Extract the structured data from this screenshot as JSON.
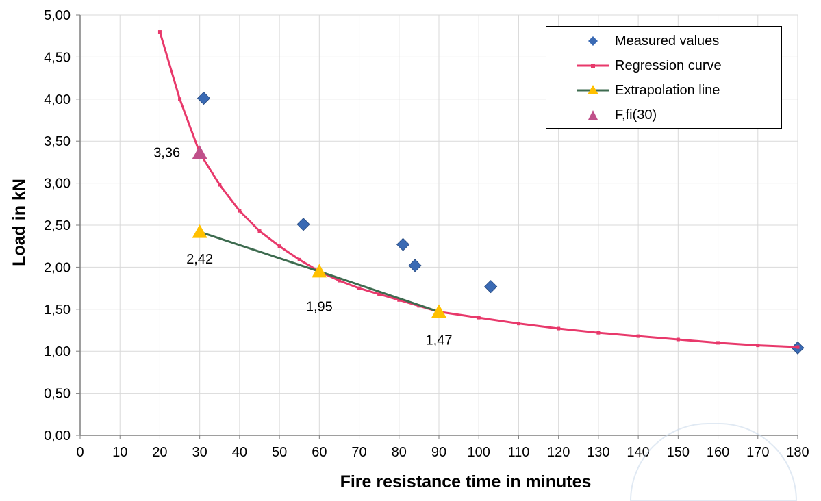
{
  "chart_data": {
    "type": "scatter",
    "xlabel": "Fire resistance time in minutes",
    "ylabel": "Load in kN",
    "xlim": [
      0,
      180
    ],
    "ylim": [
      0,
      5
    ],
    "x_ticks": [
      "0",
      "10",
      "20",
      "30",
      "40",
      "50",
      "60",
      "70",
      "80",
      "90",
      "100",
      "110",
      "120",
      "130",
      "140",
      "150",
      "160",
      "170",
      "180"
    ],
    "y_ticks": [
      "0,00",
      "0,50",
      "1,00",
      "1,50",
      "2,00",
      "2,50",
      "3,00",
      "3,50",
      "4,00",
      "4,50",
      "5,00"
    ],
    "grid": true,
    "legend_position": "top-right",
    "series": [
      {
        "name": "Measured values",
        "kind": "markers",
        "marker": "diamond",
        "color": "#3a6ab4",
        "points": [
          [
            31,
            4.01
          ],
          [
            56,
            2.51
          ],
          [
            81,
            2.27
          ],
          [
            84,
            2.02
          ],
          [
            103,
            1.77
          ],
          [
            180,
            1.04
          ]
        ]
      },
      {
        "name": "Regression curve",
        "kind": "line",
        "color": "#e8396b",
        "points": [
          [
            20,
            4.8
          ],
          [
            25,
            4.0
          ],
          [
            30,
            3.36
          ],
          [
            35,
            2.98
          ],
          [
            40,
            2.67
          ],
          [
            45,
            2.43
          ],
          [
            50,
            2.25
          ],
          [
            55,
            2.09
          ],
          [
            60,
            1.95
          ],
          [
            65,
            1.84
          ],
          [
            70,
            1.75
          ],
          [
            75,
            1.68
          ],
          [
            80,
            1.61
          ],
          [
            85,
            1.54
          ],
          [
            90,
            1.47
          ],
          [
            100,
            1.4
          ],
          [
            110,
            1.33
          ],
          [
            120,
            1.27
          ],
          [
            130,
            1.22
          ],
          [
            140,
            1.18
          ],
          [
            150,
            1.14
          ],
          [
            160,
            1.1
          ],
          [
            170,
            1.07
          ],
          [
            180,
            1.05
          ]
        ]
      },
      {
        "name": "Extrapolation line",
        "kind": "line-markers",
        "marker": "triangle",
        "line_color": "#3d6b4f",
        "marker_color": "#ffc000",
        "points": [
          [
            30,
            2.42
          ],
          [
            60,
            1.95
          ],
          [
            90,
            1.47
          ]
        ]
      },
      {
        "name": "F,fi(30)",
        "kind": "markers",
        "marker": "triangle",
        "color": "#c0508a",
        "points": [
          [
            30,
            3.36
          ]
        ]
      }
    ],
    "annotations": [
      {
        "text": "3,36",
        "x": 30,
        "y": 3.36
      },
      {
        "text": "2,42",
        "x": 30,
        "y": 2.42
      },
      {
        "text": "1,95",
        "x": 60,
        "y": 1.95
      },
      {
        "text": "1,47",
        "x": 90,
        "y": 1.47
      }
    ]
  }
}
